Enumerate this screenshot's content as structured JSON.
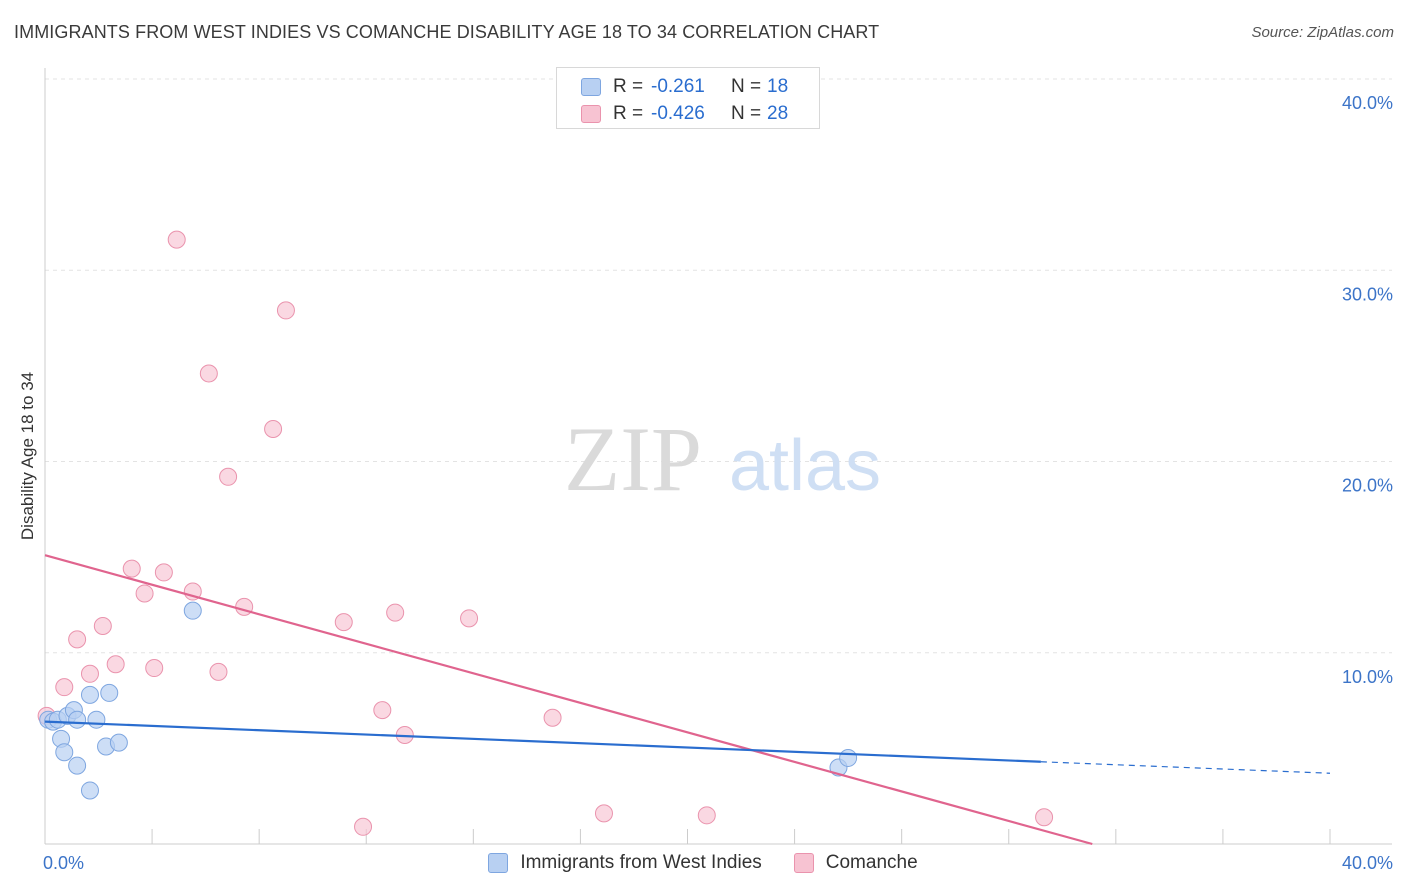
{
  "title": "IMMIGRANTS FROM WEST INDIES VS COMANCHE DISABILITY AGE 18 TO 34 CORRELATION CHART",
  "source": "Source: ZipAtlas.com",
  "watermark": {
    "zip": "ZIP",
    "atlas": "atlas"
  },
  "colors": {
    "blue_fill": "#b8d0f2",
    "blue_stroke": "#7ea6e0",
    "blue_line": "#2a6dcf",
    "pink_fill": "#f7c3d2",
    "pink_stroke": "#ea93ad",
    "pink_line": "#e0648e",
    "tick_label": "#3c74c8",
    "grid": "#e3e3e3"
  },
  "legend": {
    "rows": [
      {
        "series": "blue",
        "r_label": "R =",
        "r_value": "-0.261",
        "n_label": "N =",
        "n_value": "18"
      },
      {
        "series": "pink",
        "r_label": "R =",
        "r_value": "-0.426",
        "n_label": "N =",
        "n_value": "28"
      }
    ]
  },
  "chart_data": {
    "type": "scatter",
    "title": "IMMIGRANTS FROM WEST INDIES VS COMANCHE DISABILITY AGE 18 TO 34 CORRELATION CHART",
    "xlabel": "",
    "ylabel": "Disability Age 18 to 34",
    "xlim": [
      0,
      40
    ],
    "ylim": [
      0,
      40
    ],
    "x_tick_labels": [
      {
        "value": 0,
        "label": "0.0%"
      },
      {
        "value": 40,
        "label": "40.0%"
      }
    ],
    "y_tick_labels": [
      {
        "value": 10,
        "label": "10.0%"
      },
      {
        "value": 20,
        "label": "20.0%"
      },
      {
        "value": 30,
        "label": "30.0%"
      },
      {
        "value": 40,
        "label": "40.0%"
      }
    ],
    "series": [
      {
        "name": "Immigrants from West Indies",
        "color": "blue",
        "points": [
          [
            0.1,
            6.5
          ],
          [
            0.25,
            6.4
          ],
          [
            0.4,
            6.5
          ],
          [
            0.5,
            5.5
          ],
          [
            0.6,
            4.8
          ],
          [
            0.7,
            6.7
          ],
          [
            0.9,
            7.0
          ],
          [
            1.0,
            4.1
          ],
          [
            1.0,
            6.5
          ],
          [
            1.4,
            2.8
          ],
          [
            1.4,
            7.8
          ],
          [
            1.6,
            6.5
          ],
          [
            1.9,
            5.1
          ],
          [
            2.0,
            7.9
          ],
          [
            2.3,
            5.3
          ],
          [
            4.6,
            12.2
          ],
          [
            24.7,
            4.0
          ],
          [
            25.0,
            4.5
          ]
        ],
        "trend": {
          "x_start": 0,
          "y_start": 6.4,
          "x_end": 31,
          "y_end": 4.3,
          "dashed_to_x": 40,
          "dashed_to_y": 3.7
        }
      },
      {
        "name": "Comanche",
        "color": "pink",
        "points": [
          [
            0.05,
            6.7
          ],
          [
            0.6,
            8.2
          ],
          [
            1.0,
            10.7
          ],
          [
            1.4,
            8.9
          ],
          [
            1.8,
            11.4
          ],
          [
            2.2,
            9.4
          ],
          [
            2.7,
            14.4
          ],
          [
            3.1,
            13.1
          ],
          [
            3.4,
            9.2
          ],
          [
            3.7,
            14.2
          ],
          [
            4.1,
            31.6
          ],
          [
            4.6,
            13.2
          ],
          [
            5.1,
            24.6
          ],
          [
            5.4,
            9.0
          ],
          [
            5.7,
            19.2
          ],
          [
            6.2,
            12.4
          ],
          [
            7.1,
            21.7
          ],
          [
            7.5,
            27.9
          ],
          [
            9.3,
            11.6
          ],
          [
            9.9,
            0.9
          ],
          [
            10.5,
            7.0
          ],
          [
            10.9,
            12.1
          ],
          [
            11.2,
            5.7
          ],
          [
            13.2,
            11.8
          ],
          [
            15.8,
            6.6
          ],
          [
            17.4,
            1.6
          ],
          [
            20.6,
            1.5
          ],
          [
            31.1,
            1.4
          ]
        ],
        "trend": {
          "x_start": 0,
          "y_start": 15.1,
          "x_end": 32.6,
          "y_end": 0
        }
      }
    ],
    "legend": [
      "Immigrants from West Indies",
      "Comanche"
    ]
  }
}
